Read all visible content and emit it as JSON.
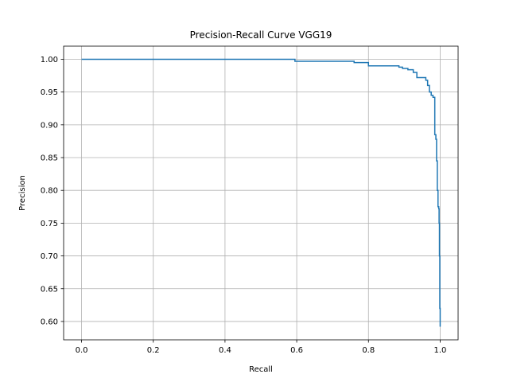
{
  "chart_data": {
    "type": "line",
    "title": "Precision-Recall Curve VGG19",
    "xlabel": "Recall",
    "ylabel": "Precision",
    "xlim": [
      -0.05,
      1.05
    ],
    "ylim": [
      0.572,
      1.02
    ],
    "grid": true,
    "legend": "none",
    "xticks": [
      0.0,
      0.2,
      0.4,
      0.6,
      0.8,
      1.0
    ],
    "xtick_labels": [
      "0.0",
      "0.2",
      "0.4",
      "0.6",
      "0.8",
      "1.0"
    ],
    "yticks": [
      0.6,
      0.65,
      0.7,
      0.75,
      0.8,
      0.85,
      0.9,
      0.95,
      1.0
    ],
    "ytick_labels": [
      "0.60",
      "0.65",
      "0.70",
      "0.75",
      "0.80",
      "0.85",
      "0.90",
      "0.95",
      "1.00"
    ],
    "series": [
      {
        "color": "#1f77b4",
        "x": [
          0.0,
          0.595,
          0.595,
          0.76,
          0.76,
          0.8,
          0.8,
          0.885,
          0.885,
          0.895,
          0.895,
          0.91,
          0.91,
          0.925,
          0.925,
          0.935,
          0.935,
          0.94,
          0.94,
          0.96,
          0.96,
          0.965,
          0.965,
          0.97,
          0.97,
          0.975,
          0.975,
          0.98,
          0.98,
          0.985,
          0.985,
          0.988,
          0.988,
          0.99,
          0.99,
          0.992,
          0.992,
          0.994,
          0.994,
          0.996,
          0.996,
          0.997,
          0.997,
          0.998,
          0.998,
          0.999,
          0.999,
          1.0,
          1.0
        ],
        "y": [
          1.0,
          1.0,
          0.997,
          0.997,
          0.995,
          0.995,
          0.99,
          0.99,
          0.988,
          0.988,
          0.986,
          0.986,
          0.984,
          0.984,
          0.98,
          0.98,
          0.972,
          0.972,
          0.972,
          0.972,
          0.968,
          0.968,
          0.96,
          0.96,
          0.95,
          0.95,
          0.945,
          0.945,
          0.942,
          0.942,
          0.885,
          0.885,
          0.878,
          0.878,
          0.845,
          0.845,
          0.8,
          0.8,
          0.775,
          0.775,
          0.772,
          0.772,
          0.75,
          0.75,
          0.7,
          0.7,
          0.62,
          0.62,
          0.592
        ]
      }
    ]
  }
}
